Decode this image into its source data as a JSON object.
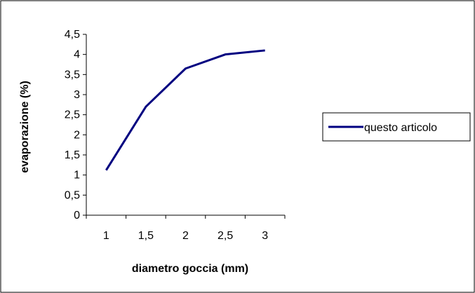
{
  "chart_data": {
    "type": "line",
    "title": "",
    "xlabel": "diametro goccia (mm)",
    "ylabel": "evaporazione (%)",
    "categories": [
      "1",
      "1,5",
      "2",
      "2,5",
      "3"
    ],
    "series": [
      {
        "name": "questo articolo",
        "color": "#000080",
        "values": [
          1.12,
          2.7,
          3.65,
          4.0,
          4.1
        ]
      }
    ],
    "ylim": [
      0,
      4.5
    ],
    "yticks": [
      "0",
      "0,5",
      "1",
      "1,5",
      "2",
      "2,5",
      "3",
      "3,5",
      "4",
      "4,5"
    ],
    "grid": false,
    "legend_position": "right"
  }
}
